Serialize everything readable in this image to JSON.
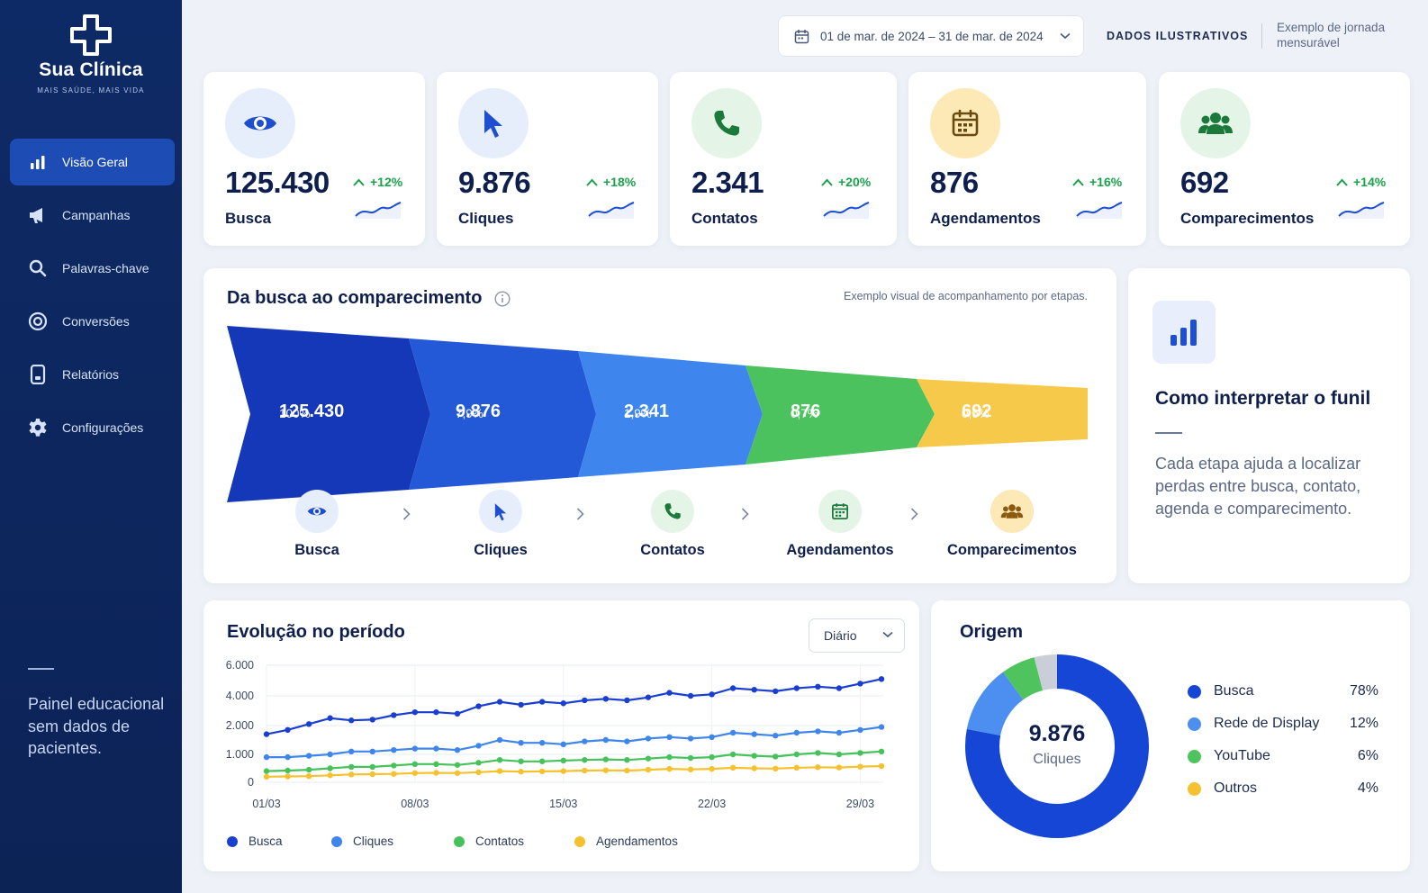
{
  "brand": {
    "name": "Sua Clínica",
    "tagline": "MAIS SAÚDE, MAIS VIDA"
  },
  "nav": [
    {
      "label": "Visão Geral",
      "icon": "bar-chart-icon",
      "active": true
    },
    {
      "label": "Campanhas",
      "icon": "megaphone-icon",
      "active": false
    },
    {
      "label": "Palavras-chave",
      "icon": "search-icon",
      "active": false
    },
    {
      "label": "Conversões",
      "icon": "target-icon",
      "active": false
    },
    {
      "label": "Relatórios",
      "icon": "report-icon",
      "active": false
    },
    {
      "label": "Configurações",
      "icon": "gear-icon",
      "active": false
    }
  ],
  "sidebar_note": "Painel educacional sem dados de pacientes.",
  "topbar": {
    "date_range": "01 de mar. de 2024 – 31 de mar. de 2024",
    "badge": "DADOS ILUSTRATIVOS",
    "note": "Exemplo de jornada mensurável"
  },
  "kpis": [
    {
      "value": "125.430",
      "label": "Busca",
      "delta": "+12%",
      "icon": "eye-icon",
      "color": "#1f4fd1",
      "bg": "#e6eefc"
    },
    {
      "value": "9.876",
      "label": "Cliques",
      "delta": "+18%",
      "icon": "cursor-icon",
      "color": "#1f4fd1",
      "bg": "#e6eefc"
    },
    {
      "value": "2.341",
      "label": "Contatos",
      "delta": "+20%",
      "icon": "phone-icon",
      "color": "#1b7a3a",
      "bg": "#e4f5e8"
    },
    {
      "value": "876",
      "label": "Agendamentos",
      "delta": "+16%",
      "icon": "calendar-icon",
      "color": "#6b4a12",
      "bg": "#fde9b6"
    },
    {
      "value": "692",
      "label": "Comparecimentos",
      "delta": "+14%",
      "icon": "people-icon",
      "color": "#1b7a3a",
      "bg": "#e4f5e8"
    }
  ],
  "funnel": {
    "title": "Da busca ao comparecimento",
    "subtitle": "Exemplo visual de acompanhamento por etapas.",
    "steps": [
      {
        "value": "125.430",
        "pct": "100%",
        "label": "Busca",
        "color": "#1438b8"
      },
      {
        "value": "9.876",
        "pct": "7,9%",
        "label": "Cliques",
        "color": "#2358d6"
      },
      {
        "value": "2.341",
        "pct": "1,9%",
        "label": "Contatos",
        "color": "#3e85ee"
      },
      {
        "value": "876",
        "pct": "0,7%",
        "label": "Agendamentos",
        "color": "#4cc25f"
      },
      {
        "value": "692",
        "pct": "0,6%",
        "label": "Comparecimentos",
        "color": "#f7c94a"
      }
    ]
  },
  "interpret": {
    "title": "Como interpretar o funil",
    "body": "Cada etapa ajuda a localizar perdas entre busca, contato, agenda e comparecimento."
  },
  "evolution": {
    "title": "Evolução no período",
    "period": "Diário"
  },
  "chart_data": {
    "type": "line",
    "ylim": [
      0,
      6000
    ],
    "yticks": [
      "6.000",
      "4.000",
      "2.000",
      "1.000",
      "0"
    ],
    "xticks": [
      "01/03",
      "08/03",
      "15/03",
      "22/03",
      "29/03"
    ],
    "x": [
      "01/03",
      "02/03",
      "03/03",
      "04/03",
      "05/03",
      "06/03",
      "07/03",
      "08/03",
      "09/03",
      "10/03",
      "11/03",
      "12/03",
      "13/03",
      "14/03",
      "15/03",
      "16/03",
      "17/03",
      "18/03",
      "19/03",
      "20/03",
      "21/03",
      "22/03",
      "23/03",
      "24/03",
      "25/03",
      "26/03",
      "27/03",
      "28/03",
      "29/03",
      "30/03"
    ],
    "series": [
      {
        "name": "Busca",
        "color": "#1a3fd0",
        "values": [
          1700,
          1850,
          2100,
          2500,
          2350,
          2400,
          2700,
          2900,
          2900,
          2800,
          3300,
          3600,
          3400,
          3600,
          3500,
          3700,
          3800,
          3700,
          3900,
          4200,
          4000,
          4100,
          4500,
          4400,
          4300,
          4500,
          4600,
          4500,
          4800,
          5100
        ]
      },
      {
        "name": "Cliques",
        "color": "#3f86ea",
        "values": [
          900,
          900,
          950,
          1000,
          1100,
          1100,
          1150,
          1200,
          1200,
          1150,
          1300,
          1500,
          1400,
          1400,
          1350,
          1450,
          1500,
          1450,
          1550,
          1600,
          1550,
          1600,
          1750,
          1700,
          1650,
          1750,
          1800,
          1750,
          1850,
          1950
        ]
      },
      {
        "name": "Contatos",
        "color": "#47c15a",
        "values": [
          400,
          420,
          450,
          500,
          550,
          550,
          600,
          650,
          650,
          620,
          700,
          800,
          750,
          750,
          780,
          800,
          820,
          800,
          850,
          900,
          870,
          900,
          1000,
          950,
          920,
          1000,
          1050,
          1000,
          1050,
          1100
        ]
      },
      {
        "name": "Agendamentos",
        "color": "#f6c12f",
        "values": [
          200,
          210,
          220,
          250,
          280,
          290,
          300,
          330,
          340,
          330,
          360,
          400,
          380,
          390,
          400,
          420,
          430,
          420,
          450,
          480,
          460,
          480,
          520,
          500,
          490,
          520,
          540,
          530,
          560,
          580
        ]
      }
    ]
  },
  "origem": {
    "title": "Origem",
    "center_value": "9.876",
    "center_label": "Cliques",
    "items": [
      {
        "label": "Busca",
        "pct": "78%",
        "value": 78,
        "color": "#1646d6"
      },
      {
        "label": "Rede de Display",
        "pct": "12%",
        "value": 12,
        "color": "#4c8ff0"
      },
      {
        "label": "YouTube",
        "pct": "6%",
        "value": 6,
        "color": "#4fc45e"
      },
      {
        "label": "Outros",
        "pct": "4%",
        "value": 4,
        "color": "#c9ced8"
      }
    ]
  }
}
